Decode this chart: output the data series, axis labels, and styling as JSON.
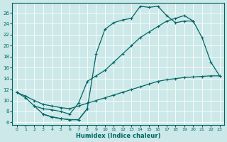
{
  "bg_color": "#cce8e8",
  "line_color": "#006666",
  "xlabel": "Humidex (Indice chaleur)",
  "xlim": [
    -0.5,
    23.5
  ],
  "ylim": [
    5.5,
    27.8
  ],
  "xticks": [
    0,
    1,
    2,
    3,
    4,
    5,
    6,
    7,
    8,
    9,
    10,
    11,
    12,
    13,
    14,
    15,
    16,
    17,
    18,
    19,
    20,
    21,
    22,
    23
  ],
  "yticks": [
    6,
    8,
    10,
    12,
    14,
    16,
    18,
    20,
    22,
    24,
    26
  ],
  "lines": [
    {
      "x": [
        0,
        1,
        2,
        3,
        4,
        5,
        6,
        7,
        8,
        9,
        10,
        11,
        12,
        13,
        14,
        15,
        16,
        17,
        18,
        19,
        20
      ],
      "y": [
        11.5,
        10.5,
        9.0,
        7.5,
        7.0,
        6.7,
        6.5,
        6.5,
        8.5,
        18.5,
        23.0,
        24.2,
        24.7,
        25.0,
        27.2,
        27.0,
        27.2,
        25.5,
        24.2,
        24.5,
        24.5
      ]
    },
    {
      "x": [
        2,
        3,
        4,
        5,
        6,
        7,
        8,
        9,
        10,
        11,
        12,
        13,
        14,
        15,
        16,
        17,
        18,
        19,
        20,
        21,
        22,
        23
      ],
      "y": [
        9.0,
        8.5,
        8.3,
        8.0,
        7.5,
        9.5,
        13.5,
        14.5,
        15.5,
        17.0,
        18.5,
        20.0,
        21.5,
        22.5,
        23.5,
        24.5,
        25.0,
        25.5,
        24.5,
        21.5,
        17.0,
        14.5
      ]
    },
    {
      "x": [
        0,
        1,
        2,
        3,
        4,
        5,
        6,
        7,
        8,
        9,
        10,
        11,
        12,
        13,
        14,
        15,
        16,
        17,
        18,
        19,
        20,
        21,
        22,
        23
      ],
      "y": [
        11.5,
        10.8,
        10.0,
        9.3,
        9.0,
        8.7,
        8.5,
        9.0,
        9.5,
        10.0,
        10.5,
        11.0,
        11.5,
        12.0,
        12.5,
        13.0,
        13.5,
        13.8,
        14.0,
        14.2,
        14.3,
        14.4,
        14.5,
        14.5
      ]
    },
    {
      "x": [
        3,
        4,
        5,
        6,
        7,
        8
      ],
      "y": [
        7.5,
        7.0,
        6.7,
        6.5,
        6.5,
        8.5
      ]
    }
  ]
}
